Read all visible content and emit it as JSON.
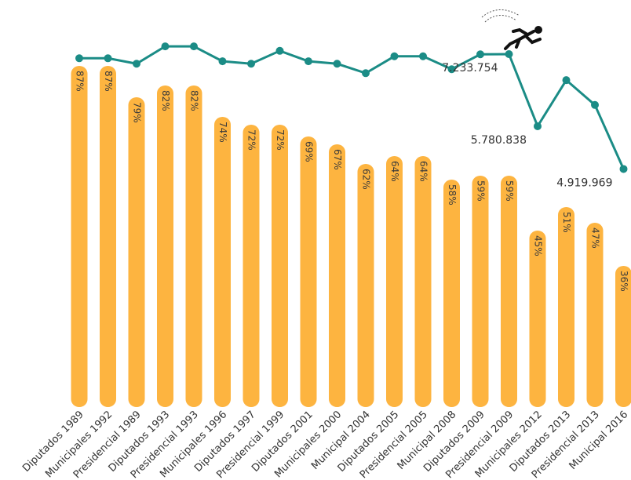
{
  "chart_data": {
    "type": "bar",
    "categories": [
      "Diputados 1989",
      "Municipales 1992",
      "Presidencial 1989",
      "Diputados 1993",
      "Presidencial 1993",
      "Municipales 1996",
      "Diputados 1997",
      "Presidencial 1999",
      "Diputados 2001",
      "Municipales 2000",
      "Municipal 2004",
      "Diputados 2005",
      "Presidencial 2005",
      "Municipal 2008",
      "Diputados 2009",
      "Presidencial 2009",
      "Municipales 2012",
      "Diputados 2013",
      "Presidencial 2013",
      "Municipal 2016"
    ],
    "values": [
      87,
      87,
      79,
      82,
      82,
      74,
      72,
      72,
      69,
      67,
      62,
      64,
      64,
      58,
      59,
      59,
      45,
      51,
      47,
      36
    ],
    "value_labels": [
      "87%",
      "87%",
      "79%",
      "82%",
      "82%",
      "74%",
      "72%",
      "72%",
      "69%",
      "67%",
      "62%",
      "64%",
      "64%",
      "58%",
      "59%",
      "59%",
      "45%",
      "51%",
      "47%",
      "36%"
    ],
    "color": "#fdb440",
    "ylim": [
      0,
      100
    ],
    "y2lim": [
      4000000,
      8000000
    ],
    "line": {
      "type": "line",
      "axis": "y2",
      "color": "#1b8c86",
      "values": [
        7150000,
        7150000,
        7040000,
        7390000,
        7390000,
        7090000,
        7040000,
        7300000,
        7090000,
        7040000,
        6850000,
        7190000,
        7190000,
        6930000,
        7230000,
        7233754,
        5780838,
        6710000,
        6210000,
        4919969
      ],
      "value_labels": [
        null,
        null,
        null,
        null,
        null,
        null,
        null,
        null,
        null,
        null,
        null,
        null,
        null,
        null,
        null,
        "7.233.754",
        "5.780.838",
        null,
        null,
        "4.919.969"
      ]
    }
  }
}
